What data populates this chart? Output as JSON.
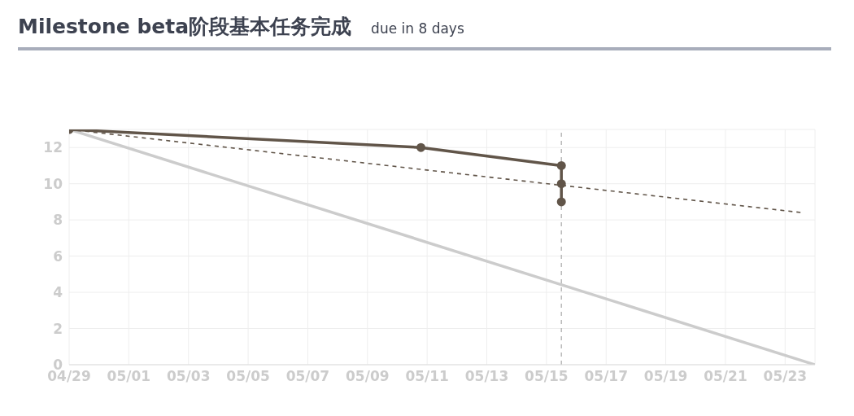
{
  "chart_data": {
    "type": "line",
    "title": "Milestone beta阶段基本任务完成",
    "subtitle": "due in 8 days",
    "series": [
      {
        "color": "#cccccc",
        "x": [
          "--04-29",
          "--05-24"
        ],
        "values": [
          13,
          0
        ],
        "line_style": "solid"
      },
      {
        "color": "#615549",
        "x": [
          "--04-29",
          "--05-23T14:00"
        ],
        "values": [
          13,
          8.4
        ],
        "line_style": "dashed"
      },
      {
        "color": "#615549",
        "x": [
          "--04-29",
          "--05-10T19:00",
          "--05-15T12:00",
          "--05-15T12:00",
          "--05-15T12:00"
        ],
        "values": [
          13,
          12,
          11,
          10,
          9
        ],
        "line_style": "solid",
        "marker": "circle"
      }
    ],
    "xlim": [
      "--04-29",
      "--05-24"
    ],
    "xticks": [
      {
        "value": "--04-29",
        "label": "04/29"
      },
      {
        "value": "--05-01",
        "label": "05/01"
      },
      {
        "value": "--05-03",
        "label": "05/03"
      },
      {
        "value": "--05-05",
        "label": "05/05"
      },
      {
        "value": "--05-07",
        "label": "05/07"
      },
      {
        "value": "--05-09",
        "label": "05/09"
      },
      {
        "value": "--05-11",
        "label": "05/11"
      },
      {
        "value": "--05-13",
        "label": "05/13"
      },
      {
        "value": "--05-15",
        "label": "05/15"
      },
      {
        "value": "--05-17",
        "label": "05/17"
      },
      {
        "value": "--05-19",
        "label": "05/19"
      },
      {
        "value": "--05-21",
        "label": "05/21"
      },
      {
        "value": "--05-23",
        "label": "05/23"
      }
    ],
    "ylim": [
      0,
      13
    ],
    "yticks": [
      0,
      2,
      4,
      6,
      8,
      10,
      12
    ],
    "ref_lines": [
      {
        "axis": "x",
        "value": "--05-15T12:00",
        "color": "#bbbbbb",
        "line_style": "dashed"
      }
    ],
    "grid": true,
    "legend": false
  }
}
